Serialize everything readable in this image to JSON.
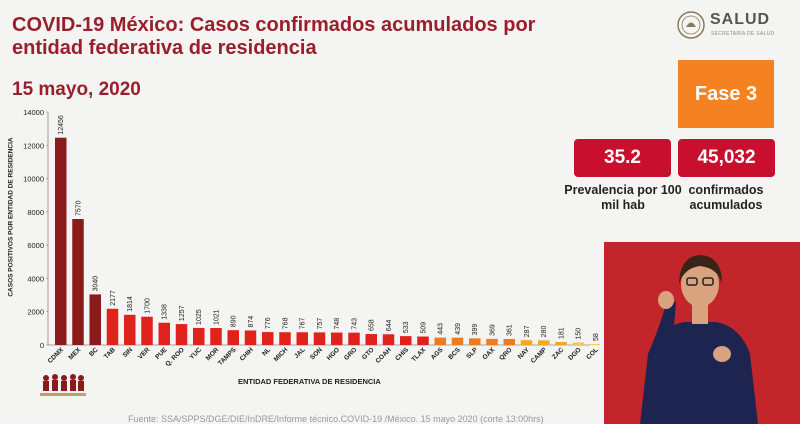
{
  "header": {
    "title": "COVID-19 México: Casos confirmados acumulados por entidad federativa de residencia",
    "date": "15 mayo, 2020"
  },
  "logo": {
    "name": "SALUD",
    "sub": "SECRETARÍA DE SALUD"
  },
  "fase": {
    "label": "Fase 3"
  },
  "stats": {
    "prevalence_value": "35.2",
    "prevalence_label": "Prevalencia por 100 mil hab",
    "confirmed_value": "45,032",
    "confirmed_label": "confirmados acumulados"
  },
  "footer": "Fuente: SSA/SPPS/DGE/DIE/InDRE/Informe técnico.COVID-19 /México. 15 mayo 2020 (corte 13:00hrs)",
  "chart_data": {
    "type": "bar",
    "ylabel": "CASOS POSITIVOS POR ENTIDAD DE RESIDENCIA",
    "xlabel": "ENTIDAD FEDERATIVA DE RESIDENCIA",
    "ylim": [
      0,
      14000
    ],
    "yticks": [
      0,
      2000,
      4000,
      6000,
      8000,
      10000,
      12000,
      14000
    ],
    "categories": [
      "CDMX",
      "MEX",
      "BC",
      "TAB",
      "SIN",
      "VER",
      "PUE",
      "Q. ROO",
      "YUC",
      "MOR",
      "TAMPS",
      "CHIH",
      "NL",
      "MICH",
      "JAL",
      "SON",
      "HGO",
      "GRO",
      "GTO",
      "COAH",
      "CHIS",
      "TLAX",
      "AGS",
      "BCS",
      "SLP",
      "OAX",
      "QRO",
      "NAY",
      "CAMP",
      "ZAC",
      "DGO",
      "COL"
    ],
    "values": [
      12456,
      7570,
      3040,
      2177,
      1814,
      1700,
      1338,
      1257,
      1025,
      1021,
      890,
      874,
      776,
      768,
      767,
      757,
      748,
      743,
      658,
      644,
      533,
      509,
      443,
      439,
      399,
      369,
      361,
      287,
      280,
      181,
      150,
      58
    ],
    "grid": false,
    "colors": {
      "dark": "#8b1a1a",
      "red": "#e0221c",
      "orange": "#f07a1f",
      "amber": "#f5a623",
      "yellow": "#f7c948"
    }
  }
}
